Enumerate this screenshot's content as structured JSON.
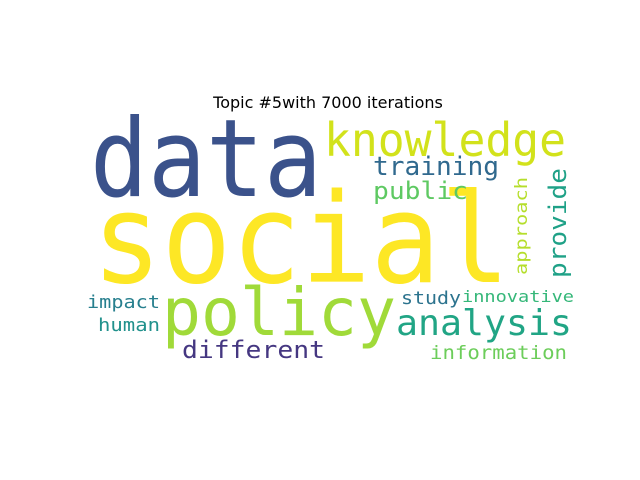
{
  "title": "Topic #5with 7000 iterations",
  "words": [
    {
      "text": "social",
      "color": "#fde725"
    },
    {
      "text": "data",
      "color": "#3b528b"
    },
    {
      "text": "policy",
      "color": "#a0da39"
    },
    {
      "text": "knowledge",
      "color": "#d2e21b"
    },
    {
      "text": "analysis",
      "color": "#21a585"
    },
    {
      "text": "training",
      "color": "#30698e"
    },
    {
      "text": "public",
      "color": "#5ec962"
    },
    {
      "text": "provide",
      "color": "#1fa187"
    },
    {
      "text": "approach",
      "color": "#b5de2b"
    },
    {
      "text": "different",
      "color": "#453781"
    },
    {
      "text": "information",
      "color": "#6ccd5a"
    },
    {
      "text": "study",
      "color": "#2c738e"
    },
    {
      "text": "innovative",
      "color": "#35b779"
    },
    {
      "text": "impact",
      "color": "#277f8e"
    },
    {
      "text": "human",
      "color": "#21918c"
    }
  ]
}
